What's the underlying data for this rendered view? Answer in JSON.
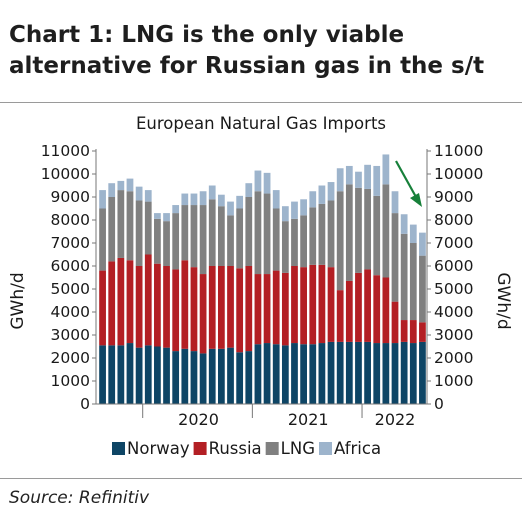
{
  "header": {
    "title_line1": "Chart 1: LNG is the only viable",
    "title_line2": "alternative for Russian gas in the s/t"
  },
  "footer": {
    "source": "Source: Refinitiv"
  },
  "colors": {
    "Norway": "#0e4565",
    "Russia": "#b31f24",
    "LNG": "#808080",
    "Africa": "#9db4cc",
    "arrow": "#17803a",
    "axis": "#777777"
  },
  "chart_data": {
    "type": "bar",
    "stacked": true,
    "title": "European Natural Gas Imports",
    "ylabel": "GWh/d",
    "y2label": "GWh/d",
    "ylim": [
      0,
      11000
    ],
    "yticks": [
      0,
      1000,
      2000,
      3000,
      4000,
      5000,
      6000,
      7000,
      8000,
      9000,
      10000,
      11000
    ],
    "xtick_labels": [
      "2020",
      "2021",
      "2022"
    ],
    "grid": false,
    "legend_position": "bottom",
    "annotation": "downward arrow over latest months",
    "categories": [
      "Aug 2019",
      "Sep 2019",
      "Oct 2019",
      "Nov 2019",
      "Dec 2019",
      "Jan 2020",
      "Feb 2020",
      "Mar 2020",
      "Apr 2020",
      "May 2020",
      "Jun 2020",
      "Jul 2020",
      "Aug 2020",
      "Sep 2020",
      "Oct 2020",
      "Nov 2020",
      "Dec 2020",
      "Jan 2021",
      "Feb 2021",
      "Mar 2021",
      "Apr 2021",
      "May 2021",
      "Jun 2021",
      "Jul 2021",
      "Aug 2021",
      "Sep 2021",
      "Oct 2021",
      "Nov 2021",
      "Dec 2021",
      "Jan 2022",
      "Feb 2022",
      "Mar 2022",
      "Apr 2022",
      "May 2022",
      "Jun 2022",
      "Jul 2022"
    ],
    "series": [
      {
        "name": "Norway",
        "values": [
          2550,
          2550,
          2550,
          2650,
          2450,
          2550,
          2500,
          2450,
          2300,
          2400,
          2300,
          2200,
          2400,
          2400,
          2450,
          2250,
          2300,
          2600,
          2650,
          2600,
          2550,
          2650,
          2600,
          2600,
          2650,
          2700,
          2700,
          2700,
          2700,
          2700,
          2650,
          2650,
          2650,
          2700,
          2650,
          2700
        ]
      },
      {
        "name": "Russia",
        "values": [
          3250,
          3650,
          3800,
          3600,
          3550,
          3950,
          3600,
          3550,
          3550,
          3850,
          3650,
          3450,
          3600,
          3600,
          3550,
          3650,
          3700,
          3050,
          3000,
          3200,
          3150,
          3350,
          3350,
          3450,
          3400,
          3250,
          2250,
          2650,
          3000,
          3150,
          2950,
          2850,
          1800,
          950,
          1000,
          850
        ]
      },
      {
        "name": "LNG",
        "values": [
          2700,
          2800,
          2950,
          3000,
          2850,
          2300,
          1950,
          1950,
          2450,
          2400,
          2700,
          3000,
          2900,
          2600,
          2200,
          2600,
          3000,
          3600,
          3500,
          2700,
          2250,
          2050,
          2250,
          2500,
          2650,
          2900,
          4300,
          4200,
          3700,
          3500,
          3450,
          4050,
          3850,
          3750,
          3350,
          2900
        ]
      },
      {
        "name": "Africa",
        "values": [
          800,
          600,
          400,
          550,
          600,
          500,
          250,
          350,
          350,
          500,
          500,
          600,
          600,
          500,
          600,
          550,
          600,
          900,
          900,
          800,
          650,
          750,
          700,
          700,
          800,
          800,
          1000,
          800,
          700,
          1050,
          1300,
          1300,
          950,
          850,
          800,
          1000
        ]
      }
    ]
  }
}
